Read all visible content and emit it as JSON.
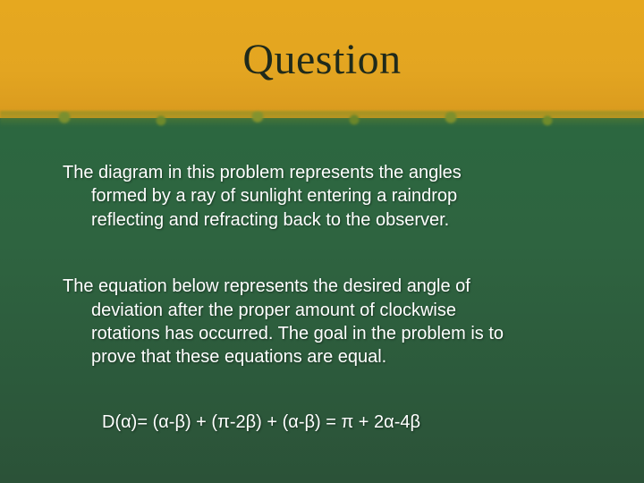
{
  "slide": {
    "title": "Question",
    "title_color": "#1f2a1b",
    "title_fontsize": 48,
    "header_bg_top": "#e6a81f",
    "header_bg_bottom": "#d99a1e",
    "body_bg_top": "#2a6b3f",
    "body_bg_bottom": "#2b5238",
    "text_color": "#ffffff",
    "body_fontsize": 20,
    "para1": {
      "l1": "The diagram in this problem represents the angles",
      "l2": "formed by a ray of sunlight entering a raindrop",
      "l3": "reflecting and refracting back to the observer."
    },
    "para2": {
      "l1": "The equation below represents the desired angle of",
      "l2": "deviation after the proper amount of clockwise",
      "l3": "rotations has occurred. The goal in the problem is to",
      "l4": "prove that these equations are equal."
    },
    "equation": "D(α)= (α-β) + (π-2β) + (α-β) = π + 2α-4β"
  }
}
